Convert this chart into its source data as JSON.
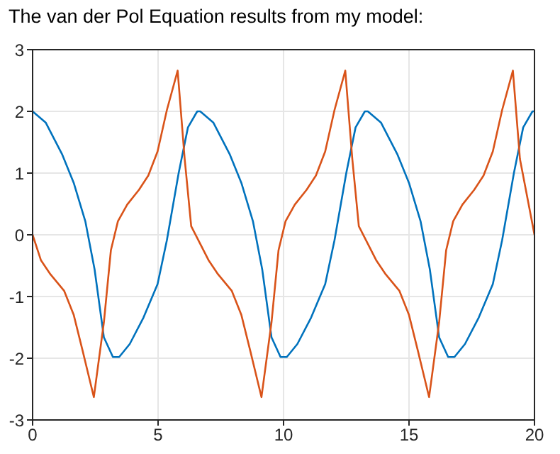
{
  "chart_data": {
    "type": "line",
    "title": "The van der Pol Equation results from my model:",
    "xlim": [
      0,
      20
    ],
    "xticks": [
      0,
      5,
      10,
      15,
      20
    ],
    "ylim": [
      -3,
      3
    ],
    "yticks": [
      -3,
      -2,
      -1,
      0,
      1,
      2,
      3
    ],
    "grid": true,
    "legend": false,
    "marker": "none",
    "line_style": "solid",
    "series": [
      {
        "color": "#0072bd",
        "x": [
          0,
          0.52,
          1.17,
          1.64,
          2.1,
          2.47,
          2.84,
          3.2,
          3.45,
          3.87,
          4.42,
          4.98,
          5.35,
          5.82,
          6.19,
          6.56,
          6.68,
          7.2,
          7.85,
          8.32,
          8.78,
          9.15,
          9.52,
          9.88,
          10.13,
          10.55,
          11.1,
          11.66,
          12.03,
          12.5,
          12.87,
          13.24,
          13.36,
          13.88,
          14.53,
          15.0,
          15.46,
          15.83,
          16.2,
          16.56,
          16.81,
          17.23,
          17.78,
          18.34,
          18.71,
          19.18,
          19.55,
          19.92,
          20
        ],
        "values": [
          2.0,
          1.82,
          1.31,
          0.84,
          0.22,
          -0.56,
          -1.66,
          -1.98,
          -1.98,
          -1.77,
          -1.34,
          -0.8,
          -0.09,
          1.0,
          1.74,
          2.0,
          2.0,
          1.82,
          1.31,
          0.84,
          0.22,
          -0.56,
          -1.66,
          -1.98,
          -1.98,
          -1.77,
          -1.34,
          -0.8,
          -0.09,
          1.0,
          1.74,
          2.0,
          2.0,
          1.82,
          1.31,
          0.84,
          0.22,
          -0.56,
          -1.66,
          -1.98,
          -1.98,
          -1.77,
          -1.34,
          -0.8,
          -0.09,
          1.0,
          1.74,
          2.0,
          2.0
        ]
      },
      {
        "color": "#d95319",
        "x": [
          0,
          0.33,
          0.71,
          1.26,
          1.64,
          2.0,
          2.44,
          2.84,
          3.12,
          3.4,
          3.77,
          4.24,
          4.61,
          4.98,
          5.35,
          5.78,
          6.06,
          6.32,
          7.01,
          7.39,
          7.94,
          8.32,
          8.68,
          9.12,
          9.52,
          9.8,
          10.08,
          10.45,
          10.92,
          11.29,
          11.66,
          12.03,
          12.46,
          12.74,
          13.0,
          13.69,
          14.07,
          14.62,
          15.0,
          15.36,
          15.8,
          16.2,
          16.48,
          16.76,
          17.13,
          17.6,
          17.97,
          18.34,
          18.71,
          19.14,
          19.42,
          20
        ],
        "values": [
          0,
          -0.41,
          -0.64,
          -0.91,
          -1.3,
          -1.89,
          -2.63,
          -1.42,
          -0.25,
          0.22,
          0.49,
          0.73,
          0.96,
          1.35,
          2.02,
          2.66,
          1.23,
          0.14,
          -0.41,
          -0.64,
          -0.91,
          -1.3,
          -1.89,
          -2.63,
          -1.42,
          -0.25,
          0.22,
          0.49,
          0.73,
          0.96,
          1.35,
          2.02,
          2.66,
          1.23,
          0.14,
          -0.41,
          -0.64,
          -0.91,
          -1.3,
          -1.89,
          -2.63,
          -1.42,
          -0.25,
          0.22,
          0.49,
          0.73,
          0.96,
          1.35,
          2.02,
          2.66,
          1.23,
          0
        ]
      }
    ]
  }
}
